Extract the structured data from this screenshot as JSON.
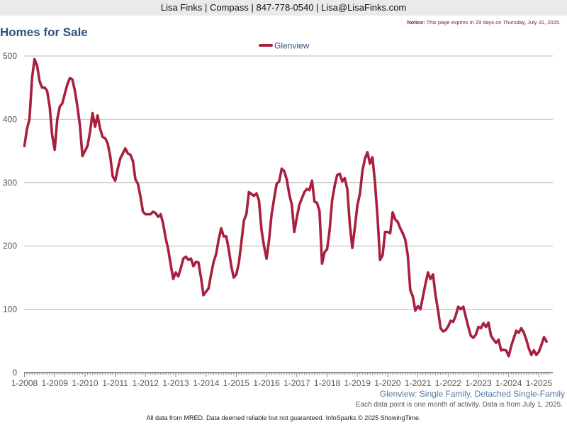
{
  "header": {
    "contact": "Lisa Finks | Compass | 847-778-0540 | Lisa@LisaFinks.com"
  },
  "page_title": "Homes for Sale",
  "notice": {
    "label": "Notice:",
    "text": "This page expires in 29 days on Thursday, July 31, 2025."
  },
  "chart_subtitle": "Glenview: Single Family, Detached Single-Family",
  "data_note": "Each data point is one month of activity. Data is from July 1, 2025.",
  "footer": "All data from MRED. Data deemed reliable but not guaranteed. InfoSparks © 2025 ShowingTime.",
  "colors": {
    "series": "#a8203d",
    "title": "#2f5278",
    "subtitle": "#4d7aa6",
    "grid": "#b8b8b8"
  },
  "chart_data": {
    "type": "line",
    "title": "Homes for Sale",
    "ylim": [
      0,
      500
    ],
    "y_ticks": [
      0,
      100,
      200,
      300,
      400,
      500
    ],
    "x_tick_labels": [
      "1-2008",
      "1-2009",
      "1-2010",
      "1-2011",
      "1-2012",
      "1-2013",
      "1-2014",
      "1-2015",
      "1-2016",
      "1-2017",
      "1-2018",
      "1-2019",
      "1-2020",
      "1-2021",
      "1-2022",
      "1-2023",
      "1-2024",
      "1-2025"
    ],
    "grid": true,
    "legend_position": "top-center",
    "series": [
      {
        "name": "Glenview",
        "values": [
          358,
          385,
          400,
          465,
          495,
          485,
          460,
          450,
          450,
          445,
          420,
          375,
          352,
          400,
          420,
          425,
          440,
          455,
          465,
          463,
          445,
          420,
          390,
          342,
          350,
          358,
          380,
          410,
          388,
          406,
          385,
          372,
          370,
          362,
          342,
          310,
          303,
          322,
          338,
          346,
          354,
          346,
          344,
          334,
          305,
          298,
          278,
          254,
          250,
          250,
          250,
          254,
          252,
          246,
          250,
          235,
          212,
          195,
          170,
          148,
          158,
          152,
          165,
          180,
          183,
          178,
          180,
          168,
          175,
          174,
          150,
          122,
          128,
          133,
          155,
          175,
          187,
          210,
          228,
          215,
          215,
          195,
          168,
          150,
          155,
          173,
          205,
          240,
          250,
          285,
          282,
          279,
          283,
          272,
          225,
          200,
          180,
          210,
          250,
          275,
          298,
          302,
          322,
          318,
          305,
          282,
          265,
          222,
          245,
          265,
          275,
          285,
          290,
          288,
          303,
          270,
          268,
          255,
          172,
          190,
          195,
          225,
          272,
          295,
          312,
          314,
          302,
          307,
          290,
          235,
          197,
          228,
          264,
          282,
          318,
          338,
          348,
          330,
          340,
          300,
          245,
          178,
          185,
          222,
          222,
          220,
          253,
          242,
          238,
          228,
          220,
          210,
          185,
          130,
          120,
          98,
          105,
          100,
          120,
          140,
          158,
          148,
          155,
          122,
          98,
          70,
          65,
          67,
          73,
          82,
          80,
          90,
          104,
          100,
          104,
          88,
          72,
          58,
          55,
          60,
          72,
          70,
          78,
          72,
          79,
          58,
          52,
          47,
          52,
          35,
          36,
          35,
          26,
          42,
          54,
          66,
          63,
          70,
          63,
          52,
          38,
          28,
          35,
          28,
          33,
          44,
          56,
          49
        ]
      }
    ]
  }
}
